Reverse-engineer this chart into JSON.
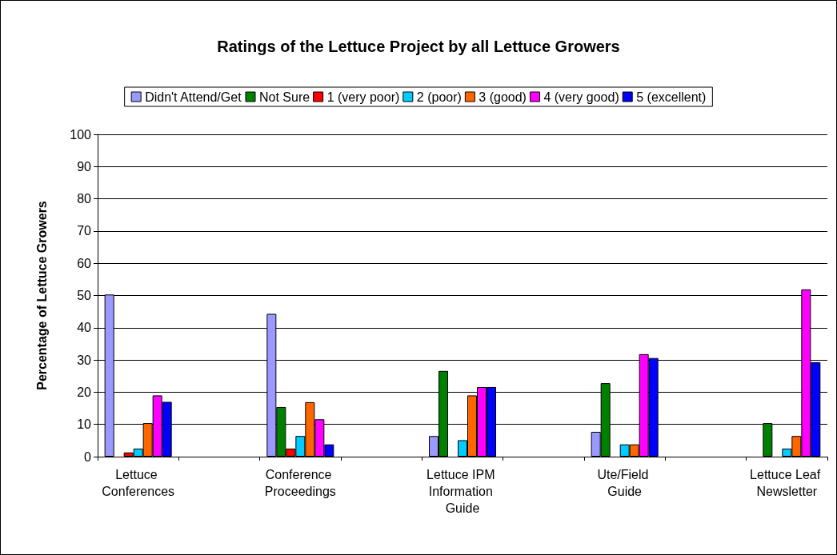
{
  "chart_data": {
    "type": "bar",
    "title": "Ratings of the Lettuce Project by all Lettuce Growers",
    "ylabel": "Percentage of Lettuce Growers",
    "categories": [
      "Lettuce Conferences",
      null,
      "Conference Proceedings",
      null,
      "Lettuce IPM Information Guide",
      null,
      "Ute/Field Guide",
      null,
      "Lettuce Leaf Newsletter"
    ],
    "series": [
      {
        "name": "Didn't Attend/Get",
        "color": "#9999ff",
        "values": [
          50.3,
          null,
          44.3,
          null,
          6.4,
          null,
          7.7,
          null,
          null
        ]
      },
      {
        "name": "Not Sure",
        "color": "#008000",
        "values": [
          null,
          null,
          15.4,
          null,
          26.6,
          null,
          22.8,
          null,
          10.4
        ]
      },
      {
        "name": "1 (very poor)",
        "color": "#ff0000",
        "values": [
          1.3,
          null,
          2.5,
          null,
          null,
          null,
          null,
          null,
          null
        ]
      },
      {
        "name": "2 (poor)",
        "color": "#00ccff",
        "values": [
          2.5,
          null,
          6.4,
          null,
          5.1,
          null,
          3.8,
          null,
          2.5
        ]
      },
      {
        "name": "3 (good)",
        "color": "#ff6600",
        "values": [
          10.4,
          null,
          16.9,
          null,
          19,
          null,
          3.8,
          null,
          6.4
        ]
      },
      {
        "name": "4 (very good)",
        "color": "#ff00ff",
        "values": [
          19,
          null,
          11.6,
          null,
          21.6,
          null,
          31.8,
          null,
          51.9
        ]
      },
      {
        "name": "5 (excellent)",
        "color": "#0000ff",
        "values": [
          17,
          null,
          3.8,
          null,
          21.6,
          null,
          30.6,
          null,
          29.3
        ]
      }
    ],
    "ylim": [
      0,
      100
    ],
    "yticks": [
      0,
      10,
      20,
      30,
      40,
      50,
      60,
      70,
      80,
      90,
      100
    ],
    "grid": "y",
    "legend": "top"
  }
}
